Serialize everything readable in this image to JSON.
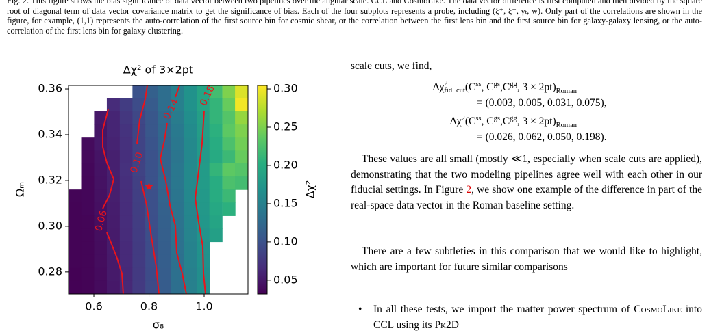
{
  "caption": "Fig. 2. This figure shows the bias significance of data vector between two pipelines over the angular scale. CCL and CosmoLike. The data vector difference is first computed and then divided by the square root of diagonal term of data vector covariance matrix to get the significance of bias. Each of the four subplots represents a probe, including (ξ⁺, ξ⁻, γₜ, w). Only part of the correlations are shown in the figure, for example, (1,1) represents the auto-correlation of the first source bin for cosmic shear, or the correlation between the first lens bin and the first source bin for galaxy-galaxy lensing, or the auto-correlation of the first lens bin for galaxy clustering.",
  "figure": {
    "type": "heatmap",
    "title": "Δχ² of 3×2pt",
    "xlabel": "σ₈",
    "ylabel": "Ωₘ",
    "colorbar_label": "Δχ²",
    "colormap": "viridis",
    "xlim": [
      0.508,
      1.159
    ],
    "ylim": [
      0.2704,
      0.3615
    ],
    "zlim": [
      0.032,
      0.3045
    ],
    "xticks": [
      0.6,
      0.8,
      {
        "value": 1,
        "label": "1.0"
      }
    ],
    "yticks": [
      0.28,
      {
        "value": 0.3,
        "label": "0.30"
      },
      0.32,
      0.34,
      0.36
    ],
    "zticks": [
      0.05,
      {
        "value": 0.1,
        "label": "0.10"
      },
      0.15,
      {
        "value": 0.2,
        "label": "0.20"
      },
      0.25,
      {
        "value": 0.3,
        "label": "0.30"
      }
    ],
    "x": [
      0.531,
      0.577,
      0.624,
      0.67,
      0.717,
      0.763,
      0.81,
      0.856,
      0.903,
      0.949,
      0.996,
      1.042,
      1.089,
      1.135
    ],
    "y": [
      0.3587,
      0.353,
      0.3473,
      0.3416,
      0.3359,
      0.3302,
      0.3246,
      0.3189,
      0.3132,
      0.3075,
      0.3018,
      0.2961,
      0.2904,
      0.2847,
      0.279,
      0.2733
    ],
    "z": [
      [
        null,
        null,
        null,
        null,
        null,
        0.1,
        0.115,
        0.13,
        0.15,
        0.17,
        0.19,
        0.22,
        0.25,
        0.29
      ],
      [
        null,
        null,
        null,
        0.065,
        0.08,
        0.095,
        0.11,
        0.13,
        0.15,
        0.17,
        0.19,
        0.21,
        0.24,
        0.3
      ],
      [
        null,
        null,
        0.05,
        0.06,
        0.075,
        0.09,
        0.105,
        0.125,
        0.145,
        0.165,
        0.185,
        0.21,
        0.23,
        0.26
      ],
      [
        null,
        null,
        0.048,
        0.06,
        0.072,
        0.088,
        0.105,
        0.122,
        0.142,
        0.162,
        0.182,
        0.205,
        0.235,
        0.25
      ],
      [
        null,
        0.04,
        0.05,
        0.058,
        0.07,
        0.087,
        0.102,
        0.12,
        0.14,
        0.16,
        0.18,
        0.2,
        0.225,
        0.245
      ],
      [
        null,
        0.038,
        0.047,
        0.056,
        0.068,
        0.085,
        0.1,
        0.118,
        0.138,
        0.158,
        0.178,
        0.198,
        0.215,
        0.24
      ],
      [
        null,
        0.037,
        0.046,
        0.056,
        0.07,
        0.086,
        0.1,
        0.118,
        0.14,
        0.16,
        0.18,
        0.21,
        0.235,
        0.23
      ],
      [
        null,
        0.036,
        0.045,
        0.055,
        0.068,
        0.084,
        0.1,
        0.12,
        0.14,
        0.16,
        0.18,
        0.2,
        0.225,
        0.22
      ],
      [
        0.035,
        0.036,
        0.044,
        0.055,
        0.067,
        0.083,
        0.098,
        0.118,
        0.138,
        0.158,
        0.178,
        0.2,
        0.215,
        null
      ],
      [
        0.034,
        0.036,
        0.043,
        0.054,
        0.066,
        0.082,
        0.098,
        0.116,
        0.136,
        0.156,
        0.176,
        0.195,
        0.205,
        null
      ],
      [
        0.034,
        0.035,
        0.042,
        0.053,
        0.066,
        0.081,
        0.097,
        0.115,
        0.135,
        0.155,
        0.175,
        0.19,
        null,
        null
      ],
      [
        0.034,
        0.035,
        0.042,
        0.052,
        0.065,
        0.08,
        0.096,
        0.114,
        0.134,
        0.154,
        0.172,
        0.185,
        null,
        null
      ],
      [
        0.034,
        0.035,
        0.041,
        0.052,
        0.064,
        0.079,
        0.095,
        0.113,
        0.133,
        0.152,
        0.17,
        null,
        null,
        null
      ],
      [
        0.034,
        0.035,
        0.041,
        0.051,
        0.064,
        0.079,
        0.095,
        0.113,
        0.132,
        0.152,
        0.168,
        null,
        null,
        null
      ],
      [
        0.033,
        0.035,
        0.04,
        0.051,
        0.063,
        0.078,
        0.094,
        0.112,
        0.132,
        0.15,
        0.165,
        null,
        null,
        null
      ],
      [
        0.033,
        0.034,
        0.04,
        0.05,
        0.063,
        0.078,
        0.094,
        0.111,
        0.131,
        0.15,
        0.165,
        null,
        null,
        null
      ]
    ],
    "contour_color": "#e8141c",
    "contours": [
      0.06,
      {
        "value": 0.1,
        "label": "0.10"
      },
      0.14,
      0.18
    ],
    "marker": {
      "x": 0.8,
      "y": 0.3173
    }
  },
  "text": {
    "intro": "scale cuts, we find,",
    "eq1_lhs": [
      "Δχ",
      "2",
      "fid−cut",
      "(C",
      "ss",
      ", C",
      "gs",
      ",C",
      "gg",
      ", 3 × 2pt)",
      "Roman"
    ],
    "eq1_rhs": "= (0.003, 0.005, 0.031, 0.075),",
    "eq2_lhs": [
      "Δχ",
      "2",
      "(C",
      "ss",
      ", C",
      "gs",
      ",C",
      "gg",
      ", 3 × 2pt)",
      "Roman"
    ],
    "eq2_rhs": "= (0.026, 0.062, 0.050, 0.198).",
    "p1": [
      "These values are all small (mostly ≪1, especially when scale cuts are applied), demonstrating that the two modeling pipelines agree well with each other in our fiducial settings. In Figure ",
      "2",
      ", we show one example of the difference in part of the real-space data vector in the Roman baseline setting."
    ],
    "p2": "There are a few subtleties in this comparison that we would like to highlight, which are important for future similar comparisons",
    "bullet": [
      "In all these tests, we import the matter power spectrum of ",
      "CosmoLike",
      " into CCL using its ",
      "Pk2D"
    ]
  }
}
